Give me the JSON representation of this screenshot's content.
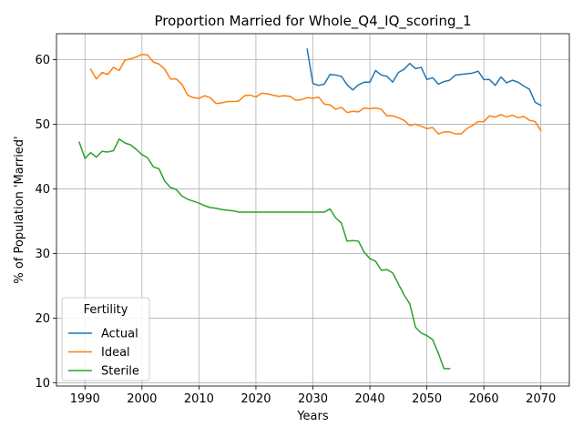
{
  "chart_data": {
    "type": "line",
    "title": "Proportion Married for Whole_Q4_IQ_scoring_1",
    "xlabel": "Years",
    "ylabel": "% of Population 'Married'",
    "xlim": [
      1985,
      2075
    ],
    "ylim": [
      9.5,
      64.0
    ],
    "xticks": [
      1990,
      2000,
      2010,
      2020,
      2030,
      2040,
      2050,
      2060,
      2070
    ],
    "yticks": [
      10,
      20,
      30,
      40,
      50,
      60
    ],
    "grid": true,
    "legend": {
      "title": "Fertility",
      "position": "lower-left"
    },
    "series": [
      {
        "name": "Actual",
        "color": "#1f77b4",
        "x": [
          2029,
          2030,
          2031,
          2032,
          2033,
          2034,
          2035,
          2036,
          2037,
          2038,
          2039,
          2040,
          2041,
          2042,
          2043,
          2044,
          2045,
          2046,
          2047,
          2048,
          2049,
          2050,
          2051,
          2052,
          2053,
          2054,
          2055,
          2056,
          2057,
          2058,
          2059,
          2060,
          2061,
          2062,
          2063,
          2064,
          2065,
          2066,
          2067,
          2068,
          2069,
          2070
        ],
        "y": [
          61.6,
          56.3,
          56.0,
          56.2,
          57.7,
          57.6,
          57.4,
          56.1,
          55.3,
          56.1,
          56.5,
          56.5,
          58.3,
          57.6,
          57.4,
          56.5,
          58.0,
          58.5,
          59.4,
          58.6,
          58.8,
          56.9,
          57.2,
          56.2,
          56.6,
          56.8,
          57.6,
          57.7,
          57.8,
          57.9,
          58.2,
          56.9,
          56.9,
          56.0,
          57.3,
          56.4,
          56.8,
          56.5,
          55.9,
          55.4,
          53.4,
          52.9
        ]
      },
      {
        "name": "Ideal",
        "color": "#ff7f0e",
        "x": [
          1991,
          1992,
          1993,
          1994,
          1995,
          1996,
          1997,
          1998,
          1999,
          2000,
          2001,
          2002,
          2003,
          2004,
          2005,
          2006,
          2007,
          2008,
          2009,
          2010,
          2011,
          2012,
          2013,
          2014,
          2015,
          2016,
          2017,
          2018,
          2019,
          2020,
          2021,
          2022,
          2023,
          2024,
          2025,
          2026,
          2027,
          2028,
          2029,
          2030,
          2031,
          2032,
          2033,
          2034,
          2035,
          2036,
          2037,
          2038,
          2039,
          2040,
          2041,
          2042,
          2043,
          2044,
          2045,
          2046,
          2047,
          2048,
          2049,
          2050,
          2051,
          2052,
          2053,
          2054,
          2055,
          2056,
          2057,
          2058,
          2059,
          2060,
          2061,
          2062,
          2063,
          2064,
          2065,
          2066,
          2067,
          2068,
          2069,
          2070
        ],
        "y": [
          58.5,
          57.0,
          58.0,
          57.7,
          58.8,
          58.3,
          59.9,
          60.1,
          60.4,
          60.8,
          60.7,
          59.6,
          59.3,
          58.5,
          57.0,
          57.0,
          56.2,
          54.5,
          54.1,
          54.0,
          54.4,
          54.1,
          53.2,
          53.3,
          53.5,
          53.5,
          53.6,
          54.4,
          54.5,
          54.2,
          54.8,
          54.7,
          54.5,
          54.3,
          54.4,
          54.3,
          53.7,
          53.8,
          54.1,
          54.0,
          54.2,
          53.1,
          53.0,
          52.3,
          52.6,
          51.8,
          52.0,
          51.9,
          52.5,
          52.4,
          52.5,
          52.3,
          51.3,
          51.3,
          51.0,
          50.6,
          49.8,
          50.0,
          49.7,
          49.3,
          49.5,
          48.5,
          48.8,
          48.8,
          48.5,
          48.5,
          49.3,
          49.8,
          50.4,
          50.4,
          51.3,
          51.1,
          51.5,
          51.1,
          51.4,
          51.0,
          51.2,
          50.6,
          50.4,
          49.0
        ]
      },
      {
        "name": "Sterile",
        "color": "#2ca02c",
        "x": [
          1989,
          1990,
          1991,
          1992,
          1993,
          1994,
          1995,
          1996,
          1997,
          1998,
          1999,
          2000,
          2001,
          2002,
          2003,
          2004,
          2005,
          2006,
          2007,
          2008,
          2009,
          2010,
          2011,
          2012,
          2013,
          2014,
          2015,
          2016,
          2017,
          2018,
          2019,
          2020,
          2021,
          2022,
          2023,
          2024,
          2025,
          2026,
          2027,
          2028,
          2029,
          2030,
          2031,
          2032,
          2033,
          2034,
          2035,
          2036,
          2037,
          2038,
          2039,
          2040,
          2041,
          2042,
          2043,
          2044,
          2045,
          2046,
          2047,
          2048,
          2049,
          2050,
          2051,
          2052,
          2053,
          2054
        ],
        "y": [
          47.2,
          44.7,
          45.6,
          44.9,
          45.8,
          45.7,
          45.9,
          47.7,
          47.1,
          46.8,
          46.1,
          45.3,
          44.8,
          43.4,
          43.1,
          41.2,
          40.2,
          39.9,
          38.9,
          38.4,
          38.1,
          37.8,
          37.4,
          37.1,
          37.0,
          36.8,
          36.7,
          36.6,
          36.4,
          36.4,
          36.4,
          36.4,
          36.4,
          36.4,
          36.4,
          36.4,
          36.4,
          36.4,
          36.4,
          36.4,
          36.4,
          36.4,
          36.4,
          36.4,
          36.9,
          35.5,
          34.7,
          31.9,
          32.0,
          31.9,
          30.2,
          29.2,
          28.8,
          27.4,
          27.5,
          27.0,
          25.3,
          23.6,
          22.2,
          18.6,
          17.7,
          17.3,
          16.7,
          14.6,
          12.2,
          12.2
        ]
      }
    ]
  }
}
